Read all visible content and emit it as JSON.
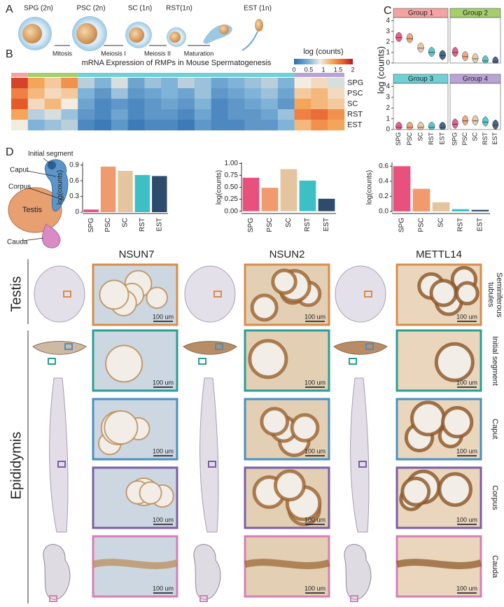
{
  "panel_labels": [
    "A",
    "B",
    "C",
    "D"
  ],
  "panel_a": {
    "stages": [
      "SPG (2n)",
      "PSC (2n)",
      "SC (1n)",
      "RST(1n)",
      "EST (1n)"
    ],
    "transitions": [
      "Mitosis",
      "Meiosis I",
      "Meiosis II",
      "Maturation"
    ]
  },
  "panel_b": {
    "type": "heatmap",
    "title": "mRNA Expression of RMPs in Mouse Spermatogenesis",
    "colorbar_label": "log (counts)",
    "clim": [
      0,
      2
    ],
    "colorbar_ticks": [
      0,
      0.5,
      1,
      1.5,
      2
    ],
    "rows": [
      "SPG",
      "PSC",
      "SC",
      "RST",
      "EST"
    ],
    "values": [
      [
        1.8,
        1.3,
        1.1,
        1.4,
        0.7,
        0.5,
        0.8,
        0.4,
        0.6,
        0.5,
        0.7,
        0.6,
        0.4,
        0.5,
        0.6,
        0.7,
        0.5,
        0.9,
        1.0,
        0.8
      ],
      [
        1.5,
        1.2,
        1.0,
        1.1,
        0.5,
        0.3,
        0.6,
        0.3,
        0.4,
        0.5,
        0.4,
        0.6,
        0.3,
        0.4,
        0.5,
        0.6,
        0.4,
        1.1,
        1.2,
        1.0
      ],
      [
        1.7,
        1.0,
        1.2,
        0.9,
        0.4,
        0.2,
        0.3,
        0.2,
        0.3,
        0.4,
        0.3,
        0.5,
        0.2,
        0.3,
        0.4,
        0.5,
        0.3,
        1.3,
        1.2,
        1.1
      ],
      [
        1.3,
        0.7,
        0.8,
        0.6,
        0.3,
        0.2,
        0.4,
        0.2,
        0.3,
        0.3,
        0.2,
        0.4,
        0.2,
        0.3,
        0.3,
        0.4,
        0.6,
        1.5,
        1.6,
        1.4
      ],
      [
        0.9,
        0.5,
        0.6,
        0.7,
        0.2,
        0.1,
        0.3,
        0.1,
        0.2,
        0.2,
        0.1,
        0.3,
        0.2,
        0.2,
        0.3,
        0.3,
        0.5,
        1.2,
        1.4,
        1.3
      ]
    ]
  },
  "panel_c": {
    "type": "violin",
    "ylabel": "log (counts)",
    "ylim": [
      0,
      4.3
    ],
    "yticks": [
      0,
      1,
      2,
      3,
      4
    ],
    "categories": [
      "SPG",
      "PSC",
      "SC",
      "RST",
      "EST"
    ],
    "colors": [
      "#e0457b",
      "#f09a6a",
      "#e4c39a",
      "#3cbfc4",
      "#2b4c6f"
    ],
    "groups": [
      {
        "name": "Group 1",
        "color": "#f4a3a3",
        "values": [
          2.4,
          2.3,
          1.4,
          1.0,
          0.7
        ]
      },
      {
        "name": "Group 2",
        "color": "#a5cf6a",
        "values": [
          1.0,
          0.6,
          0.4,
          0.2,
          0.1
        ]
      },
      {
        "name": "Group 3",
        "color": "#6fd0d6",
        "values": [
          0.2,
          0.2,
          0.2,
          0.2,
          0.2
        ]
      },
      {
        "name": "Group 4",
        "color": "#b9a3d6",
        "values": [
          0.5,
          0.8,
          0.8,
          0.7,
          0.4
        ]
      }
    ]
  },
  "panel_d": {
    "anatomy": [
      "Initial segment",
      "Caput",
      "Corpus",
      "Testis",
      "Cauda"
    ],
    "charts": [
      {
        "type": "bar",
        "ylabel": "log(counts)",
        "categories": [
          "SPG",
          "PSC",
          "SC",
          "RST",
          "EST"
        ],
        "colors": [
          "#e8507e",
          "#f19a6d",
          "#e5c5a0",
          "#3cc0c6",
          "#2d4b6b"
        ],
        "values": [
          0.05,
          0.87,
          0.79,
          0.71,
          0.69
        ],
        "ylim": [
          0,
          0.95
        ],
        "yticks": [
          0,
          0.3,
          0.6,
          0.9
        ]
      },
      {
        "type": "bar",
        "ylabel": "log(counts)",
        "categories": [
          "SPG",
          "PSC",
          "SC",
          "RST",
          "EST"
        ],
        "colors": [
          "#e8507e",
          "#f19a6d",
          "#e5c5a0",
          "#3cc0c6",
          "#2d4b6b"
        ],
        "values": [
          0.7,
          0.49,
          0.88,
          0.64,
          0.26
        ],
        "ylim": [
          -0.02,
          1.02
        ],
        "yticks": [
          {
            "value": 0,
            "label": "0.00"
          },
          {
            "value": 0.25,
            "label": "0.25"
          },
          {
            "value": 0.5,
            "label": "0.50"
          },
          {
            "value": 0.75,
            "label": "0.75"
          },
          {
            "value": 1,
            "label": "1.00"
          }
        ]
      },
      {
        "type": "bar",
        "ylabel": "log(counts)",
        "categories": [
          "SPG",
          "PSC",
          "SC",
          "RST",
          "EST"
        ],
        "colors": [
          "#e8507e",
          "#f19a6d",
          "#e5c5a0",
          "#3cc0c6",
          "#2d4b6b"
        ],
        "values": [
          0.6,
          0.3,
          0.12,
          0.03,
          0.02
        ],
        "ylim": [
          -0.01,
          0.65
        ],
        "yticks": [
          {
            "value": 0,
            "label": "0.0"
          },
          0.2,
          0.4,
          0.6
        ]
      }
    ],
    "histology": {
      "columns": [
        "NSUN7",
        "NSUN2",
        "METTL14"
      ],
      "tissues": [
        "Testis",
        "Epididymis"
      ],
      "regions": [
        "Seminiferous tubules",
        "Initial segment",
        "Caput",
        "Corpus",
        "Cauda"
      ],
      "scale_bar": "100 um"
    }
  }
}
